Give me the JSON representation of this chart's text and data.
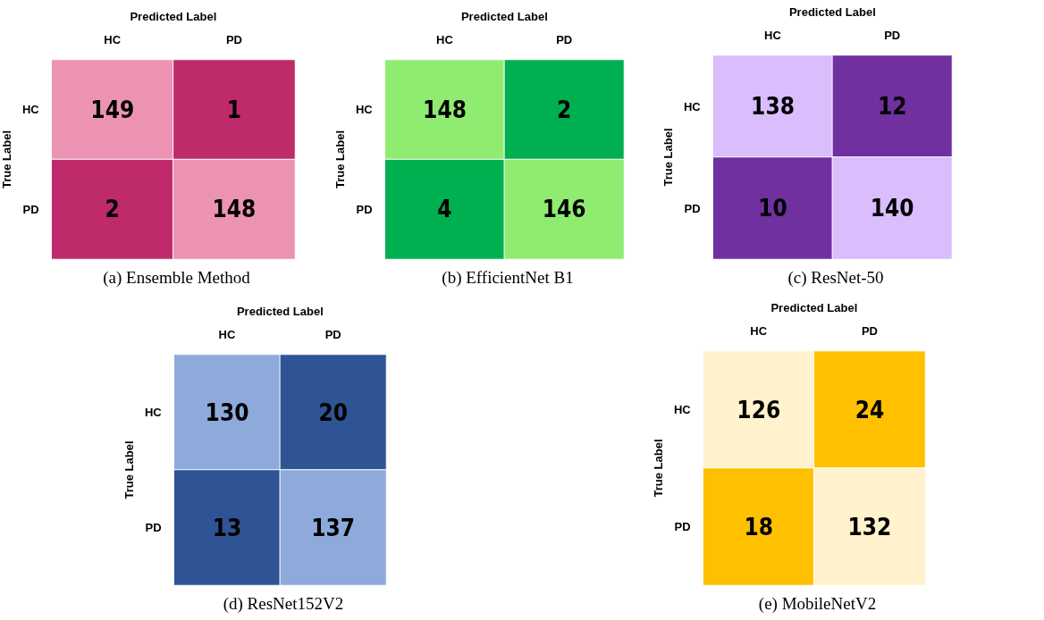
{
  "chart_data": [
    {
      "type": "heatmap",
      "title": "(a) Ensemble Method",
      "xlabel": "Predicted Label",
      "ylabel": "True Label",
      "categories": [
        "HC",
        "PD"
      ],
      "y_categories": [
        "HC",
        "PD"
      ],
      "cells": [
        [
          149,
          1
        ],
        [
          2,
          148
        ]
      ],
      "colors": [
        [
          "#ec93b4",
          "#be2a6a"
        ],
        [
          "#be2a6a",
          "#ec93b4"
        ]
      ],
      "data_labels": true
    },
    {
      "type": "heatmap",
      "title": "(b) EfficientNet B1",
      "xlabel": "Predicted Label",
      "ylabel": "True Label",
      "categories": [
        "HC",
        "PD"
      ],
      "y_categories": [
        "HC",
        "PD"
      ],
      "cells": [
        [
          148,
          2
        ],
        [
          4,
          146
        ]
      ],
      "colors": [
        [
          "#90ec70",
          "#00b050"
        ],
        [
          "#00b050",
          "#90ec70"
        ]
      ],
      "data_labels": true
    },
    {
      "type": "heatmap",
      "title": "(c) ResNet-50",
      "xlabel": "Predicted Label",
      "ylabel": "True Label",
      "categories": [
        "HC",
        "PD"
      ],
      "y_categories": [
        "HC",
        "PD"
      ],
      "cells": [
        [
          138,
          12
        ],
        [
          10,
          140
        ]
      ],
      "colors": [
        [
          "#d9bdfc",
          "#7030a0"
        ],
        [
          "#7030a0",
          "#d9bdfc"
        ]
      ],
      "data_labels": true
    },
    {
      "type": "heatmap",
      "title": "(d) ResNet152V2",
      "xlabel": "Predicted Label",
      "ylabel": "True Label",
      "categories": [
        "HC",
        "PD"
      ],
      "y_categories": [
        "HC",
        "PD"
      ],
      "cells": [
        [
          130,
          20
        ],
        [
          13,
          137
        ]
      ],
      "colors": [
        [
          "#8eaadb",
          "#2f5496"
        ],
        [
          "#2f5496",
          "#8eaadb"
        ]
      ],
      "data_labels": true
    },
    {
      "type": "heatmap",
      "title": "(e) MobileNetV2",
      "xlabel": "Predicted Label",
      "ylabel": "True Label",
      "categories": [
        "HC",
        "PD"
      ],
      "y_categories": [
        "HC",
        "PD"
      ],
      "cells": [
        [
          126,
          24
        ],
        [
          18,
          132
        ]
      ],
      "colors": [
        [
          "#fff2cc",
          "#ffc000"
        ],
        [
          "#ffc000",
          "#fff2cc"
        ]
      ],
      "data_labels": true
    }
  ]
}
